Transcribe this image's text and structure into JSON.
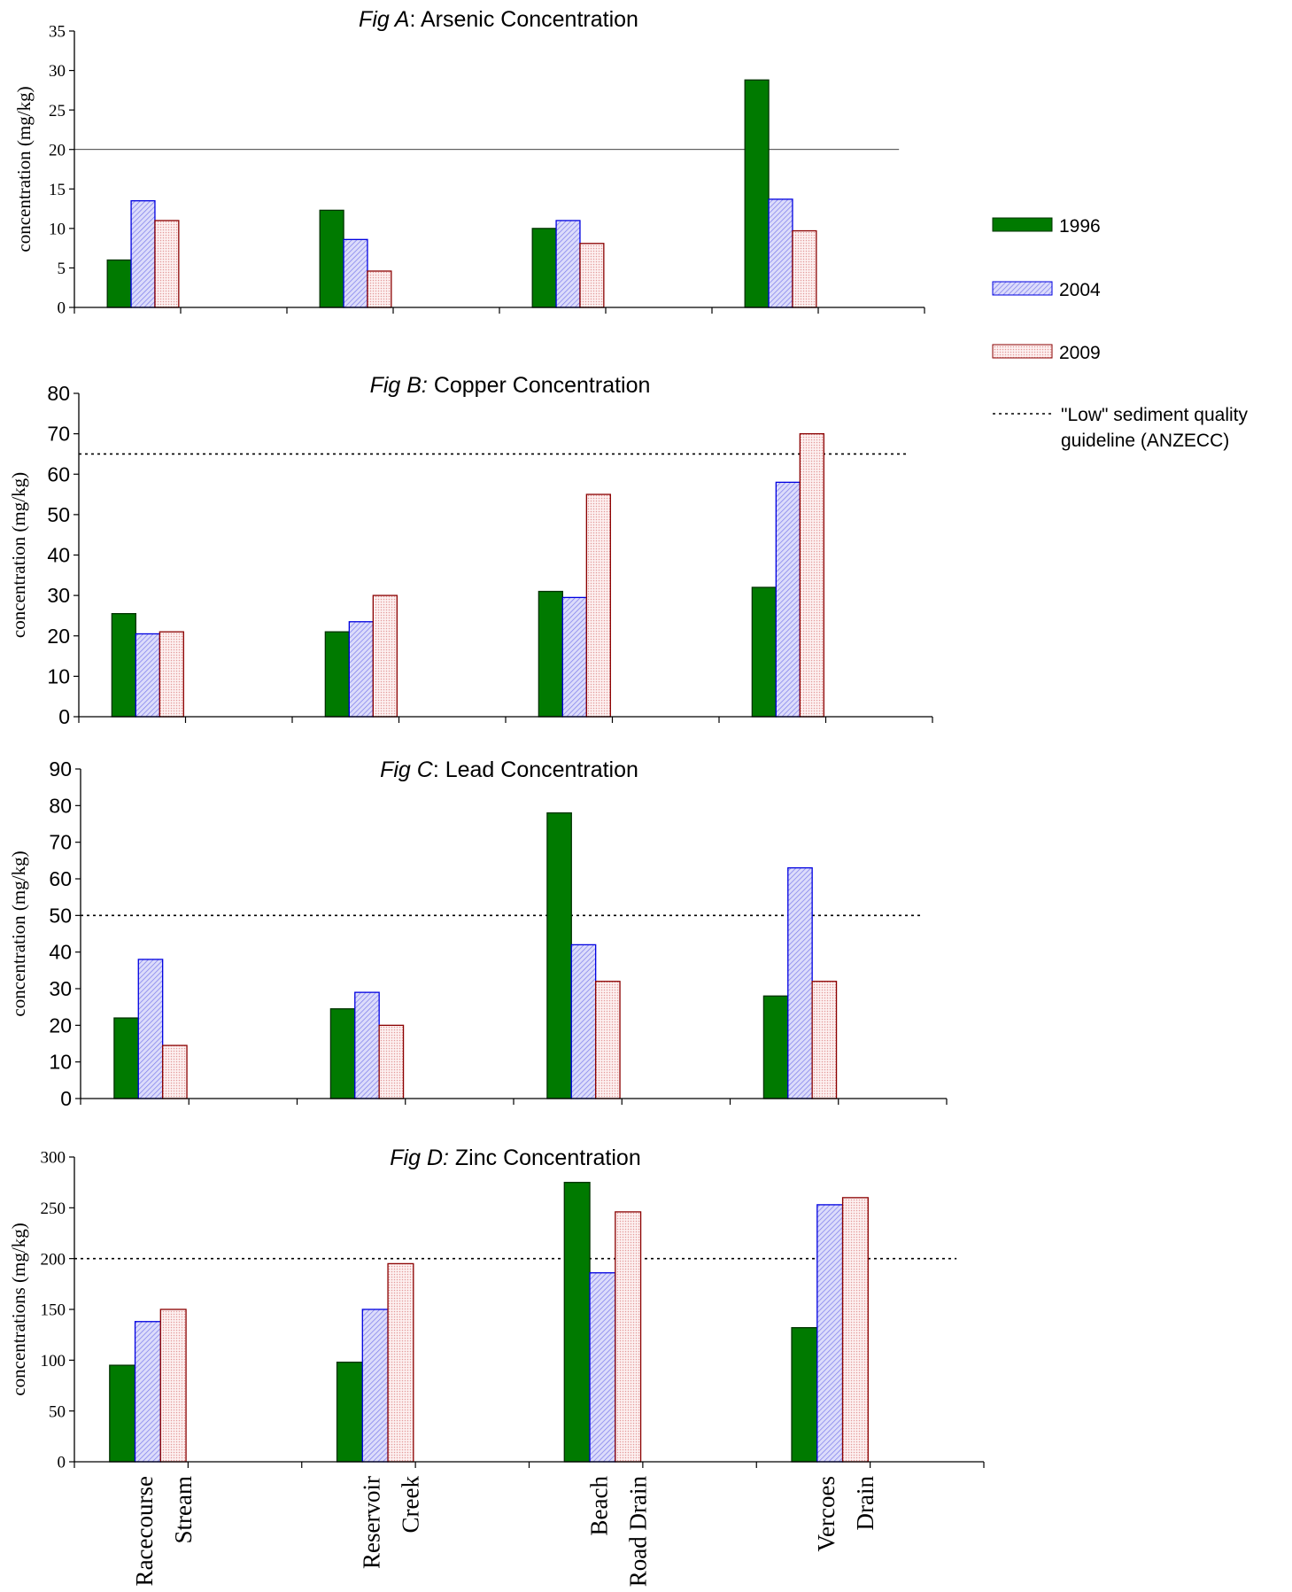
{
  "legend": {
    "items": [
      {
        "label": "1996",
        "pattern": "solid-green"
      },
      {
        "label": "2004",
        "pattern": "hatch-blue"
      },
      {
        "label": "2009",
        "pattern": "dots-red"
      }
    ],
    "guideline_label_line1": "\"Low\" sediment quality",
    "guideline_label_line2": "guideline (ANZECC)"
  },
  "colors": {
    "s1996_fill": "#007a00",
    "s1996_stroke": "#003300",
    "s2004_fill": "#c8c8f8",
    "s2004_stroke": "#0000e0",
    "s2009_fill": "#fbe0e0",
    "s2009_stroke": "#8b0000",
    "axis": "#000000",
    "guideline": "#000000"
  },
  "chart_data": [
    {
      "type": "bar",
      "title_italic": "Fig A",
      "title_rest": ": Arsenic Concentration",
      "ylabel": "concentration (mg/kg)",
      "ylim": [
        0,
        35
      ],
      "yticks": [
        "0",
        "5",
        "10",
        "15",
        "20",
        "25",
        "30",
        "35"
      ],
      "tick_font": "serif",
      "guideline": 20,
      "guideline_style": "solid",
      "categories": [
        "Racecourse Stream",
        "Reservoir Creek",
        "Beach Road Drain",
        "Vercoes Drain"
      ],
      "series": [
        {
          "name": "1996",
          "values": [
            6,
            12.3,
            10,
            28.8
          ]
        },
        {
          "name": "2004",
          "values": [
            13.5,
            8.6,
            11,
            13.7
          ]
        },
        {
          "name": "2009",
          "values": [
            11,
            4.6,
            8.1,
            9.7
          ]
        }
      ]
    },
    {
      "type": "bar",
      "title_italic": "Fig B:",
      "title_rest": " Copper Concentration",
      "ylabel": "concentration (mg/kg)",
      "ylim": [
        0,
        80
      ],
      "yticks": [
        "0",
        "10",
        "20",
        "30",
        "40",
        "50",
        "60",
        "70",
        "80"
      ],
      "tick_font": "sans",
      "guideline": 65,
      "guideline_style": "dotted",
      "categories": [
        "Racecourse Stream",
        "Reservoir Creek",
        "Beach Road Drain",
        "Vercoes Drain"
      ],
      "series": [
        {
          "name": "1996",
          "values": [
            25.5,
            21,
            31,
            32
          ]
        },
        {
          "name": "2004",
          "values": [
            20.5,
            23.5,
            29.5,
            58
          ]
        },
        {
          "name": "2009",
          "values": [
            21,
            30,
            55,
            70
          ]
        }
      ]
    },
    {
      "type": "bar",
      "title_italic": "Fig C",
      "title_rest": ": Lead Concentration",
      "ylabel": "concentration (mg/kg)",
      "ylim": [
        0,
        90
      ],
      "yticks": [
        "0",
        "10",
        "20",
        "30",
        "40",
        "50",
        "60",
        "70",
        "80",
        "90"
      ],
      "tick_font": "sans",
      "guideline": 50,
      "guideline_style": "dotted",
      "categories": [
        "Racecourse Stream",
        "Reservoir Creek",
        "Beach Road Drain",
        "Vercoes Drain"
      ],
      "series": [
        {
          "name": "1996",
          "values": [
            22,
            24.5,
            78,
            28
          ]
        },
        {
          "name": "2004",
          "values": [
            38,
            29,
            42,
            63
          ]
        },
        {
          "name": "2009",
          "values": [
            14.5,
            20,
            32,
            32
          ]
        }
      ]
    },
    {
      "type": "bar",
      "title_italic": "Fig D:",
      "title_rest": " Zinc Concentration",
      "ylabel": "concentrations (mg/kg)",
      "ylim": [
        0,
        300
      ],
      "yticks": [
        "0",
        "50",
        "100",
        "150",
        "200",
        "250",
        "300"
      ],
      "tick_font": "serif",
      "guideline": 200,
      "guideline_style": "dotted",
      "categories": [
        "Racecourse Stream",
        "Reservoir Creek",
        "Beach Road Drain",
        "Vercoes Drain"
      ],
      "category_labels": [
        [
          "Racecourse",
          "Stream"
        ],
        [
          "Reservoir",
          "Creek"
        ],
        [
          "Beach",
          "Road Drain"
        ],
        [
          "Vercoes",
          "Drain"
        ]
      ],
      "series": [
        {
          "name": "1996",
          "values": [
            95,
            98,
            275,
            132
          ]
        },
        {
          "name": "2004",
          "values": [
            138,
            150,
            186,
            253
          ]
        },
        {
          "name": "2009",
          "values": [
            150,
            195,
            246,
            260
          ]
        }
      ]
    }
  ]
}
